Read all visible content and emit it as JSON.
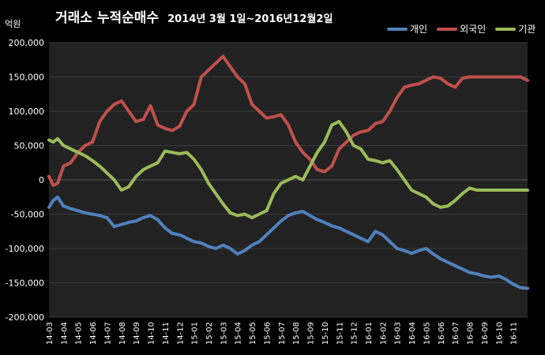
{
  "chart_data": {
    "type": "line",
    "title": "거래소 누적순매수",
    "subtitle": "2014년 3월 1일~2016년12월2일",
    "ylabel": "억원",
    "xlabel": "",
    "ylim": [
      -200000,
      200000
    ],
    "yticks": [
      200000,
      150000,
      100000,
      50000,
      0,
      -50000,
      -100000,
      -150000,
      -200000
    ],
    "ytick_labels": [
      "200,000",
      "150,000",
      "100,000",
      "50,000",
      "0",
      "-50,000",
      "-100,000",
      "-150,000",
      "-200,000"
    ],
    "categories": [
      "14-03",
      "14-04",
      "14-05",
      "14-06",
      "14-07",
      "14-08",
      "14-09",
      "14-10",
      "14-11",
      "14-12",
      "15-01",
      "15-02",
      "15-03",
      "15-04",
      "15-05",
      "15-06",
      "15-07",
      "15-08",
      "15-09",
      "15-10",
      "15-11",
      "15-12",
      "16-01",
      "16-02",
      "16-03",
      "16-04",
      "16-05",
      "16-06",
      "16-07",
      "16-08",
      "16-09",
      "16-10",
      "16-11"
    ],
    "grid": true,
    "legend_position": "top-right",
    "x": [
      0,
      0.3,
      0.6,
      1,
      1.5,
      2,
      2.5,
      3,
      3.5,
      4,
      4.5,
      5,
      5.5,
      6,
      6.5,
      7,
      7.5,
      8,
      8.5,
      9,
      9.5,
      10,
      10.5,
      11,
      11.5,
      12,
      12.5,
      13,
      13.5,
      14,
      14.5,
      15,
      15.5,
      16,
      16.5,
      17,
      17.5,
      18,
      18.5,
      19,
      19.5,
      20,
      20.5,
      21,
      21.5,
      22,
      22.5,
      23,
      23.5,
      24,
      24.5,
      25,
      25.5,
      26,
      26.5,
      27,
      27.5,
      28,
      28.5,
      29,
      29.5,
      30,
      30.5,
      31,
      31.5,
      32,
      32.5,
      33
    ],
    "series": [
      {
        "name": "개인",
        "color": "#4f81bd",
        "values": [
          -40000,
          -30000,
          -25000,
          -38000,
          -42000,
          -45000,
          -48000,
          -50000,
          -52000,
          -55000,
          -68000,
          -65000,
          -62000,
          -60000,
          -55000,
          -52000,
          -58000,
          -70000,
          -78000,
          -80000,
          -85000,
          -90000,
          -92000,
          -97000,
          -100000,
          -95000,
          -100000,
          -108000,
          -103000,
          -95000,
          -90000,
          -80000,
          -70000,
          -60000,
          -52000,
          -48000,
          -46000,
          -52000,
          -58000,
          -62000,
          -67000,
          -70000,
          -75000,
          -80000,
          -85000,
          -90000,
          -75000,
          -80000,
          -90000,
          -100000,
          -103000,
          -107000,
          -103000,
          -100000,
          -108000,
          -115000,
          -120000,
          -125000,
          -130000,
          -135000,
          -137000,
          -140000,
          -142000,
          -140000,
          -145000,
          -152000,
          -157000,
          -158000
        ]
      },
      {
        "name": "외국인",
        "color": "#c0504d",
        "values": [
          5000,
          -8000,
          -5000,
          20000,
          25000,
          40000,
          50000,
          55000,
          85000,
          100000,
          110000,
          115000,
          100000,
          85000,
          88000,
          108000,
          80000,
          75000,
          72000,
          78000,
          100000,
          110000,
          150000,
          160000,
          170000,
          180000,
          165000,
          150000,
          140000,
          110000,
          100000,
          90000,
          92000,
          95000,
          80000,
          55000,
          40000,
          30000,
          15000,
          12000,
          20000,
          45000,
          55000,
          65000,
          70000,
          72000,
          82000,
          85000,
          100000,
          120000,
          135000,
          138000,
          140000,
          145000,
          150000,
          148000,
          140000,
          135000,
          148000,
          150000,
          150000,
          150000,
          150000,
          150000,
          150000,
          150000,
          150000,
          145000
        ]
      },
      {
        "name": "기관",
        "color": "#9bbb59",
        "values": [
          58000,
          55000,
          60000,
          50000,
          45000,
          40000,
          35000,
          28000,
          20000,
          10000,
          0,
          -15000,
          -10000,
          5000,
          15000,
          20000,
          25000,
          42000,
          40000,
          38000,
          40000,
          30000,
          15000,
          -5000,
          -20000,
          -35000,
          -48000,
          -52000,
          -50000,
          -55000,
          -50000,
          -45000,
          -20000,
          -5000,
          0,
          5000,
          0,
          20000,
          40000,
          55000,
          80000,
          85000,
          70000,
          50000,
          45000,
          30000,
          28000,
          25000,
          28000,
          15000,
          0,
          -15000,
          -20000,
          -25000,
          -35000,
          -40000,
          -38000,
          -30000,
          -20000,
          -12000,
          -15000,
          -15000,
          -15000,
          -15000,
          -15000,
          -15000,
          -15000,
          -15000
        ]
      }
    ]
  }
}
